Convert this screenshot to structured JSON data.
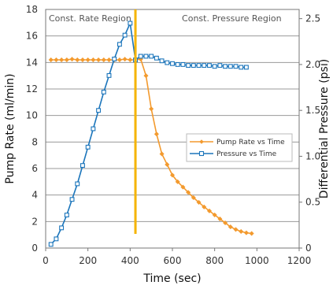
{
  "chart_data": {
    "type": "line",
    "xlabel": "Time (sec)",
    "ylabel_left": "Pump Rate (ml/min)",
    "ylabel_right": "Differential Pressure (psi)",
    "xlim": [
      0,
      1200
    ],
    "ylim_left": [
      0,
      18
    ],
    "ylim_right": [
      0,
      2.6
    ],
    "x_ticks": [
      "0",
      "200",
      "400",
      "600",
      "800",
      "1000",
      "1200"
    ],
    "y_left_ticks": [
      "0",
      "2",
      "4",
      "6",
      "8",
      "10",
      "12",
      "14",
      "16",
      "18"
    ],
    "y_right_ticks": [
      "0",
      "0.5",
      "1.0",
      "1.5",
      "2.0",
      "2.5"
    ],
    "grid": "horizontal",
    "region_divider_x": 425,
    "region_labels": [
      "Const. Rate Region",
      "Const. Pressure Region"
    ],
    "legend_position": "right-middle",
    "series": [
      {
        "name": "Pump Rate vs Time",
        "axis": "left",
        "color": "#F39A2E",
        "marker": "diamond",
        "x": [
          25,
          50,
          75,
          100,
          125,
          150,
          175,
          200,
          225,
          250,
          275,
          300,
          325,
          350,
          375,
          400,
          425,
          450,
          475,
          500,
          525,
          550,
          575,
          600,
          625,
          650,
          675,
          700,
          725,
          750,
          775,
          800,
          825,
          850,
          875,
          900,
          925,
          950,
          975
        ],
        "values": [
          14.2,
          14.2,
          14.2,
          14.2,
          14.25,
          14.2,
          14.2,
          14.2,
          14.2,
          14.2,
          14.2,
          14.2,
          14.2,
          14.2,
          14.25,
          14.2,
          14.2,
          14.25,
          13.0,
          10.5,
          8.6,
          7.1,
          6.3,
          5.5,
          5.0,
          4.6,
          4.2,
          3.8,
          3.45,
          3.1,
          2.8,
          2.5,
          2.2,
          1.9,
          1.6,
          1.4,
          1.25,
          1.15,
          1.1
        ]
      },
      {
        "name": "Pressure vs Time",
        "axis": "right",
        "color": "#1B75BB",
        "marker": "square",
        "x": [
          25,
          50,
          75,
          100,
          125,
          150,
          175,
          200,
          225,
          250,
          275,
          300,
          325,
          350,
          375,
          400,
          425,
          450,
          475,
          500,
          525,
          550,
          575,
          600,
          625,
          650,
          675,
          700,
          725,
          750,
          775,
          800,
          825,
          850,
          875,
          900,
          925,
          950
        ],
        "values": [
          0.04,
          0.1,
          0.22,
          0.36,
          0.53,
          0.7,
          0.9,
          1.1,
          1.3,
          1.5,
          1.7,
          1.88,
          2.06,
          2.22,
          2.32,
          2.45,
          2.05,
          2.09,
          2.09,
          2.09,
          2.07,
          2.04,
          2.02,
          2.01,
          2.0,
          2.0,
          1.99,
          1.99,
          1.99,
          1.99,
          1.99,
          1.98,
          1.99,
          1.98,
          1.98,
          1.98,
          1.97,
          1.97
        ]
      }
    ]
  }
}
